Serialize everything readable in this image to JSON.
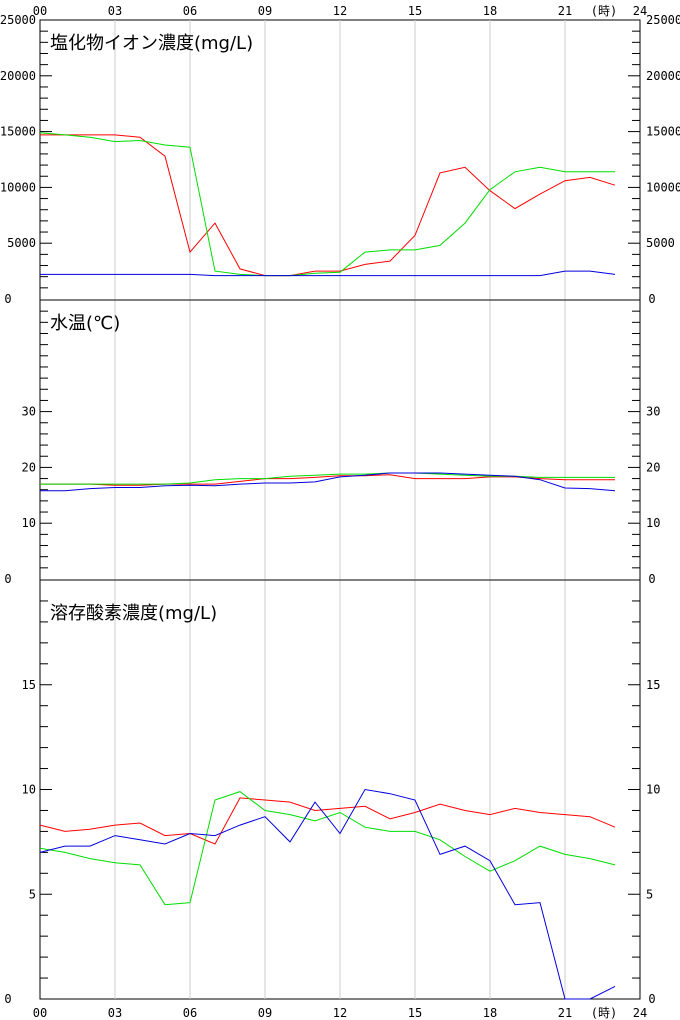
{
  "x_axis": {
    "ticks": [
      "00",
      "03",
      "06",
      "09",
      "12",
      "15",
      "18",
      "21",
      "24"
    ],
    "unit": "(時)",
    "range": [
      0,
      24
    ]
  },
  "chart_data": [
    {
      "type": "line",
      "title": "塩化物イオン濃度(mg/L)",
      "ylim": [
        0,
        25000
      ],
      "yticks": [
        "5000",
        "10000",
        "15000",
        "20000",
        "25000"
      ],
      "ytick_values": [
        5000,
        10000,
        15000,
        20000,
        25000
      ],
      "zero_label": "0",
      "grid": "vertical",
      "series": [
        {
          "color": "#ff0000",
          "x": [
            0,
            1,
            2,
            3,
            4,
            5,
            6,
            7,
            8,
            9,
            10,
            11,
            12,
            13,
            14,
            15,
            16,
            17,
            18,
            19,
            20,
            21,
            22,
            23
          ],
          "values": [
            14700,
            14700,
            14700,
            14700,
            14500,
            12800,
            4200,
            6800,
            2700,
            2100,
            2100,
            2500,
            2500,
            3100,
            3400,
            5700,
            11300,
            11800,
            9700,
            8100,
            9400,
            10600,
            10900,
            10200
          ]
        },
        {
          "color": "#00dd00",
          "x": [
            0,
            1,
            2,
            3,
            4,
            5,
            6,
            7,
            8,
            9,
            10,
            11,
            12,
            13,
            14,
            15,
            16,
            17,
            18,
            19,
            20,
            21,
            22,
            23
          ],
          "values": [
            14900,
            14700,
            14500,
            14100,
            14200,
            13800,
            13600,
            2500,
            2200,
            2100,
            2100,
            2300,
            2400,
            4200,
            4400,
            4400,
            4800,
            6800,
            9800,
            11400,
            11800,
            11400,
            11400,
            11400
          ]
        },
        {
          "color": "#0000dd",
          "x": [
            0,
            1,
            2,
            3,
            4,
            5,
            6,
            7,
            8,
            9,
            10,
            11,
            12,
            13,
            14,
            15,
            16,
            17,
            18,
            19,
            20,
            21,
            22,
            23
          ],
          "values": [
            2200,
            2200,
            2200,
            2200,
            2200,
            2200,
            2200,
            2100,
            2100,
            2100,
            2100,
            2100,
            2100,
            2100,
            2100,
            2100,
            2100,
            2100,
            2100,
            2100,
            2100,
            2500,
            2500,
            2200
          ]
        }
      ]
    },
    {
      "type": "line",
      "title": "水温(℃)",
      "ylim": [
        0,
        50
      ],
      "yticks": [
        "10",
        "20",
        "30"
      ],
      "ytick_values": [
        10,
        20,
        30
      ],
      "zero_label": "0",
      "grid": "vertical",
      "series": [
        {
          "color": "#ff0000",
          "x": [
            0,
            1,
            2,
            3,
            4,
            5,
            6,
            7,
            8,
            9,
            10,
            11,
            12,
            13,
            14,
            15,
            16,
            17,
            18,
            19,
            20,
            21,
            22,
            23
          ],
          "values": [
            17,
            17,
            17,
            16.8,
            16.8,
            17,
            17,
            17,
            17.5,
            18,
            18,
            18.2,
            18.5,
            18.5,
            18.7,
            18,
            18,
            18,
            18.3,
            18.3,
            18,
            17.8,
            17.8,
            17.8
          ]
        },
        {
          "color": "#00dd00",
          "x": [
            0,
            1,
            2,
            3,
            4,
            5,
            6,
            7,
            8,
            9,
            10,
            11,
            12,
            13,
            14,
            15,
            16,
            17,
            18,
            19,
            20,
            21,
            22,
            23
          ],
          "values": [
            17,
            17,
            17,
            17,
            17,
            17,
            17.2,
            17.8,
            18,
            18,
            18.4,
            18.6,
            18.8,
            18.8,
            19,
            19,
            18.8,
            18.6,
            18.4,
            18.4,
            18.2,
            18.2,
            18.2,
            18.2
          ]
        },
        {
          "color": "#0000dd",
          "x": [
            0,
            1,
            2,
            3,
            4,
            5,
            6,
            7,
            8,
            9,
            10,
            11,
            12,
            13,
            14,
            15,
            16,
            17,
            18,
            19,
            20,
            21,
            22,
            23
          ],
          "values": [
            15.8,
            15.8,
            16.2,
            16.4,
            16.4,
            16.7,
            16.8,
            16.7,
            17,
            17.2,
            17.2,
            17.4,
            18.3,
            18.6,
            19,
            19,
            19,
            18.8,
            18.6,
            18.4,
            17.8,
            16.3,
            16.2,
            15.8
          ]
        }
      ]
    },
    {
      "type": "line",
      "title": "溶存酸素濃度(mg/L)",
      "ylim": [
        0,
        20
      ],
      "yticks": [
        "5",
        "10",
        "15"
      ],
      "ytick_values": [
        5,
        10,
        15
      ],
      "zero_label": "0",
      "grid": "vertical",
      "series": [
        {
          "color": "#ff0000",
          "x": [
            0,
            1,
            2,
            3,
            4,
            5,
            6,
            7,
            8,
            9,
            10,
            11,
            12,
            13,
            14,
            15,
            16,
            17,
            18,
            19,
            20,
            21,
            22,
            23
          ],
          "values": [
            8.3,
            8,
            8.1,
            8.3,
            8.4,
            7.8,
            7.9,
            7.4,
            9.6,
            9.5,
            9.4,
            9,
            9.1,
            9.2,
            8.6,
            8.9,
            9.3,
            9,
            8.8,
            9.1,
            8.9,
            8.8,
            8.7,
            8.2
          ]
        },
        {
          "color": "#00dd00",
          "x": [
            0,
            1,
            2,
            3,
            4,
            5,
            6,
            7,
            8,
            9,
            10,
            11,
            12,
            13,
            14,
            15,
            16,
            17,
            18,
            19,
            20,
            21,
            22,
            23
          ],
          "values": [
            7.2,
            7,
            6.7,
            6.5,
            6.4,
            4.5,
            4.6,
            9.5,
            9.9,
            9,
            8.8,
            8.5,
            8.9,
            8.2,
            8,
            8,
            7.6,
            6.8,
            6.1,
            6.6,
            7.3,
            6.9,
            6.7,
            6.4
          ]
        },
        {
          "color": "#0000dd",
          "x": [
            0,
            1,
            2,
            3,
            4,
            5,
            6,
            7,
            8,
            9,
            10,
            11,
            12,
            13,
            14,
            15,
            16,
            17,
            18,
            19,
            20,
            21,
            22,
            23
          ],
          "values": [
            7,
            7.3,
            7.3,
            7.8,
            7.6,
            7.4,
            7.9,
            7.8,
            8.3,
            8.7,
            7.5,
            9.4,
            7.9,
            10,
            9.8,
            9.5,
            6.9,
            7.3,
            6.6,
            4.5,
            4.6,
            0,
            0,
            0.6
          ]
        }
      ]
    }
  ]
}
